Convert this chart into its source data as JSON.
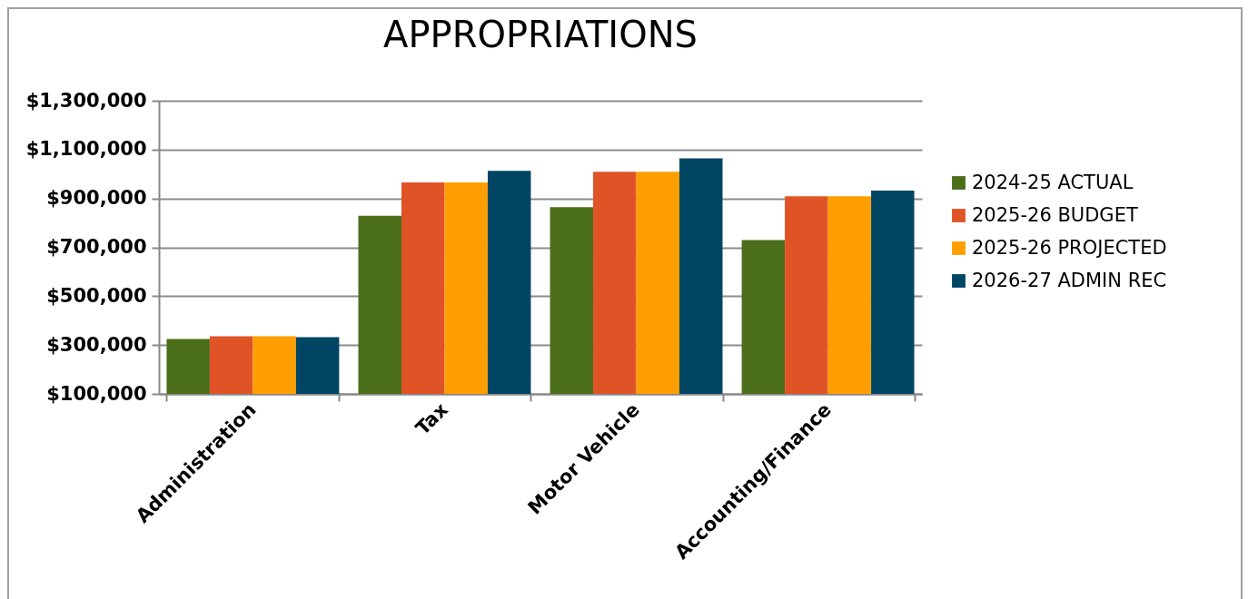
{
  "chart_data": {
    "type": "bar",
    "title": "APPROPRIATIONS",
    "categories": [
      "Administration",
      "Tax",
      "Motor Vehicle",
      "Accounting/Finance"
    ],
    "series": [
      {
        "name": "2024-25 ACTUAL",
        "color": "#4a6e1a",
        "values": [
          325000,
          829000,
          864000,
          730000
        ]
      },
      {
        "name": "2025-26 BUDGET",
        "color": "#e05327",
        "values": [
          336000,
          966000,
          1009000,
          909000
        ]
      },
      {
        "name": "2025-26 PROJECTED",
        "color": "#ff9e00",
        "values": [
          336000,
          966000,
          1009000,
          909000
        ]
      },
      {
        "name": "2026-27 ADMIN REC",
        "color": "#004664",
        "values": [
          332000,
          1013000,
          1064000,
          932000
        ]
      }
    ],
    "ylim": [
      100000,
      1300000
    ],
    "yticks": [
      {
        "value": 100000,
        "label": "$100,000"
      },
      {
        "value": 300000,
        "label": "$300,000"
      },
      {
        "value": 500000,
        "label": "$500,000"
      },
      {
        "value": 700000,
        "label": "$700,000"
      },
      {
        "value": 900000,
        "label": "$900,000"
      },
      {
        "value": 1100000,
        "label": "$1,100,000"
      },
      {
        "value": 1300000,
        "label": "$1,300,000"
      }
    ],
    "grid": "y",
    "legend": "right"
  }
}
